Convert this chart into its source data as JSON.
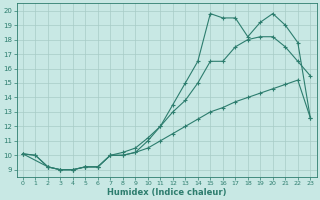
{
  "xlabel": "Humidex (Indice chaleur)",
  "bg_color": "#c8e8e4",
  "line_color": "#2d7d6e",
  "grid_color": "#a8ccc6",
  "xlim": [
    -0.5,
    23.5
  ],
  "ylim": [
    8.5,
    20.5
  ],
  "xticks": [
    0,
    1,
    2,
    3,
    4,
    5,
    6,
    7,
    8,
    9,
    10,
    11,
    12,
    13,
    14,
    15,
    16,
    17,
    18,
    19,
    20,
    21,
    22,
    23
  ],
  "yticks": [
    9,
    10,
    11,
    12,
    13,
    14,
    15,
    16,
    17,
    18,
    19,
    20
  ],
  "line_top_x": [
    0,
    1,
    2,
    3,
    4,
    5,
    6,
    7,
    8,
    9,
    10,
    11,
    12,
    13,
    14,
    15,
    16,
    17,
    18,
    19,
    20,
    21,
    22,
    23
  ],
  "line_top_y": [
    10.1,
    10.0,
    9.2,
    9.0,
    9.0,
    9.2,
    9.2,
    10.0,
    10.2,
    10.5,
    11.2,
    12.0,
    13.5,
    15.0,
    16.5,
    19.8,
    19.5,
    19.5,
    18.2,
    19.2,
    19.8,
    19.0,
    17.8,
    12.6
  ],
  "line_mid_x": [
    0,
    2,
    3,
    4,
    5,
    6,
    7,
    8,
    9,
    10,
    11,
    12,
    13,
    14,
    15,
    16,
    17,
    18,
    19,
    20,
    21,
    22,
    23
  ],
  "line_mid_y": [
    10.1,
    9.2,
    9.0,
    9.0,
    9.2,
    9.2,
    10.0,
    10.0,
    10.2,
    11.0,
    12.0,
    13.0,
    13.8,
    15.0,
    16.5,
    16.5,
    17.5,
    18.0,
    18.2,
    18.2,
    17.5,
    16.5,
    15.5
  ],
  "line_bot_x": [
    0,
    1,
    2,
    3,
    4,
    5,
    6,
    7,
    8,
    9,
    10,
    11,
    12,
    13,
    14,
    15,
    16,
    17,
    18,
    19,
    20,
    21,
    22,
    23
  ],
  "line_bot_y": [
    10.1,
    10.0,
    9.2,
    9.0,
    9.0,
    9.2,
    9.2,
    10.0,
    10.0,
    10.2,
    10.5,
    11.0,
    11.5,
    12.0,
    12.5,
    13.0,
    13.3,
    13.7,
    14.0,
    14.3,
    14.6,
    14.9,
    15.2,
    12.6
  ]
}
